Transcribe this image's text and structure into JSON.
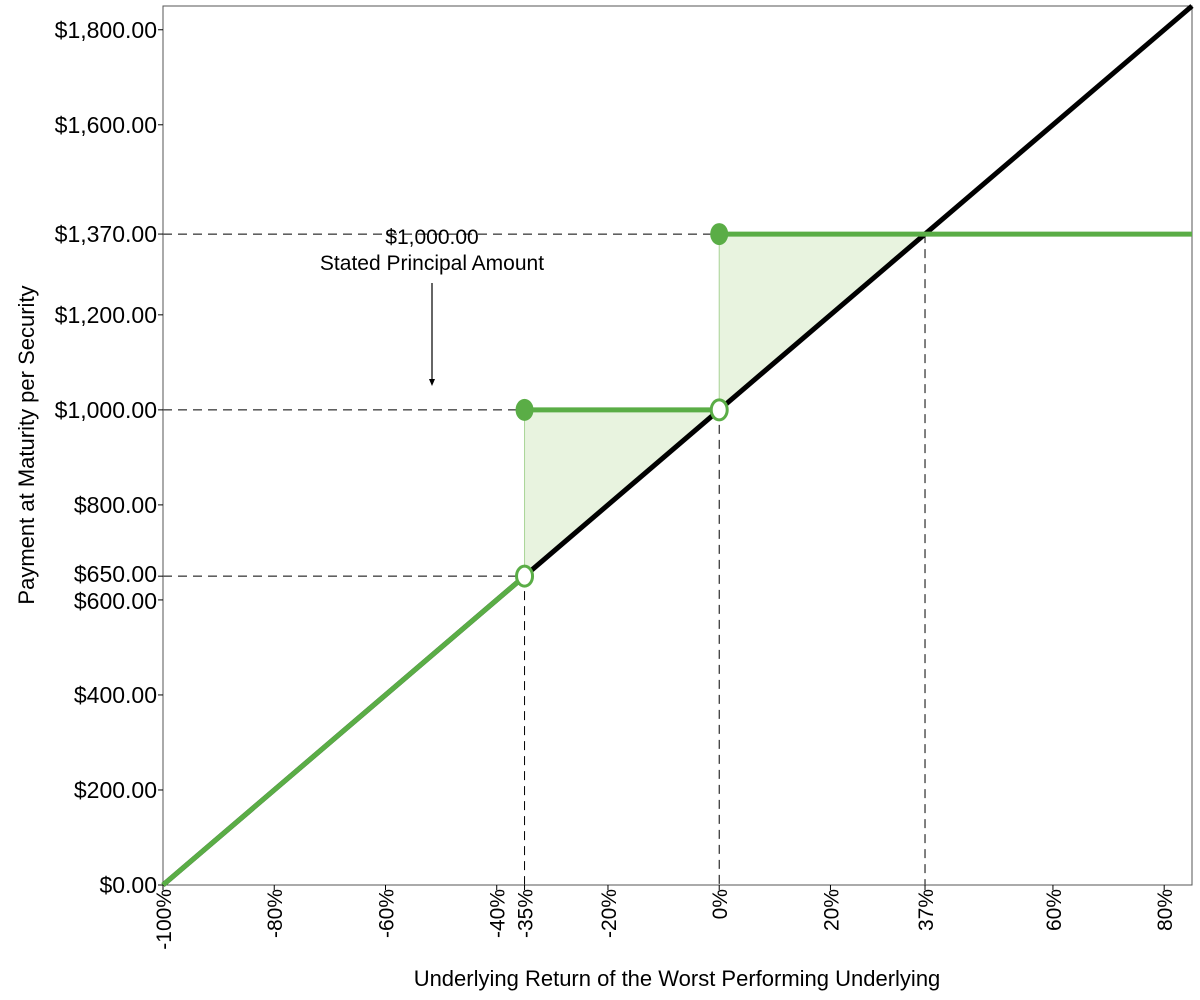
{
  "chart_data": {
    "type": "line",
    "title": "",
    "xlabel": "Underlying Return of the Worst Performing Underlying",
    "ylabel": "Payment at Maturity per Security",
    "xlim": [
      -100,
      85
    ],
    "ylim": [
      0,
      1850
    ],
    "x_ticks": [
      {
        "value": -100,
        "label": "-100%"
      },
      {
        "value": -80,
        "label": "-80%"
      },
      {
        "value": -60,
        "label": "-60%"
      },
      {
        "value": -40,
        "label": "-40%"
      },
      {
        "value": -35,
        "label": "-35%"
      },
      {
        "value": -20,
        "label": "-20%"
      },
      {
        "value": 0,
        "label": "0%"
      },
      {
        "value": 20,
        "label": "20%"
      },
      {
        "value": 37,
        "label": "37%"
      },
      {
        "value": 60,
        "label": "60%"
      },
      {
        "value": 80,
        "label": "80%"
      }
    ],
    "y_ticks": [
      {
        "value": 0,
        "label": "$0.00"
      },
      {
        "value": 200,
        "label": "$200.00"
      },
      {
        "value": 400,
        "label": "$400.00"
      },
      {
        "value": 600,
        "label": "$600.00"
      },
      {
        "value": 650,
        "label": "$650.00"
      },
      {
        "value": 800,
        "label": "$800.00"
      },
      {
        "value": 1000,
        "label": "$1,000.00"
      },
      {
        "value": 1200,
        "label": "$1,200.00"
      },
      {
        "value": 1370,
        "label": "$1,370.00"
      },
      {
        "value": 1600,
        "label": "$1,600.00"
      },
      {
        "value": 1800,
        "label": "$1,800.00"
      }
    ],
    "series": [
      {
        "color": "#000000",
        "x": [
          -100,
          85
        ],
        "y": [
          0,
          1850
        ]
      },
      {
        "color": "#5aad46",
        "segments": [
          {
            "x": [
              -100,
              -35
            ],
            "y": [
              0,
              650
            ]
          },
          {
            "x": [
              -35,
              0
            ],
            "y": [
              1000,
              1000
            ]
          },
          {
            "x": [
              0,
              85
            ],
            "y": [
              1370,
              1370
            ]
          }
        ],
        "filled_points": [
          {
            "x": -35,
            "y": 1000
          },
          {
            "x": 0,
            "y": 1370
          }
        ],
        "open_points": [
          {
            "x": -35,
            "y": 650
          },
          {
            "x": 0,
            "y": 1000
          }
        ]
      }
    ],
    "shaded_regions": [
      {
        "color": "#e8f3df",
        "points": [
          [
            -35,
            650
          ],
          [
            -35,
            1000
          ],
          [
            0,
            1000
          ]
        ]
      },
      {
        "color": "#e8f3df",
        "points": [
          [
            0,
            1000
          ],
          [
            0,
            1370
          ],
          [
            37,
            1370
          ]
        ]
      }
    ],
    "reference_lines": {
      "horizontal": [
        {
          "y": 1370,
          "x_end": 0
        },
        {
          "y": 1000,
          "x_end": -35
        },
        {
          "y": 650,
          "x_end": -35
        }
      ],
      "vertical": [
        {
          "x": -35,
          "y_end": 650
        },
        {
          "x": 0,
          "y_end": 1000
        },
        {
          "x": 37,
          "y_end": 1370
        }
      ]
    },
    "annotation": {
      "line1": "$1,000.00",
      "line2": "Stated Principal Amount"
    },
    "grid": false,
    "legend": "none"
  }
}
